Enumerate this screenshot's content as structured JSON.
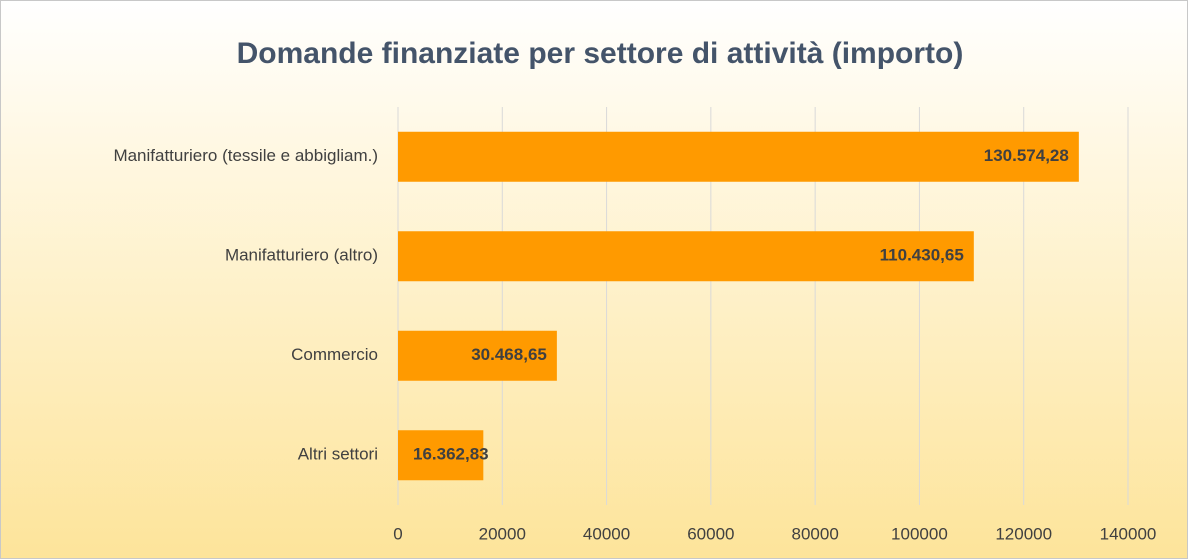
{
  "chart_data": {
    "type": "hbar",
    "title": "Domande finanziate per settore di attività (importo)",
    "categories": [
      "Manifatturiero (tessile e abbigliam.)",
      "Manifatturiero (altro)",
      "Commercio",
      "Altri settori"
    ],
    "values": [
      130574.28,
      110430.65,
      30468.65,
      16362.83
    ],
    "value_labels": [
      "130.574,28",
      "110.430,65",
      "30.468,65",
      "16.362,83"
    ],
    "color": "#ff9a00",
    "xlim": [
      0,
      140000
    ],
    "xticks": [
      0,
      20000,
      40000,
      60000,
      80000,
      100000,
      120000,
      140000
    ],
    "grid": true
  }
}
